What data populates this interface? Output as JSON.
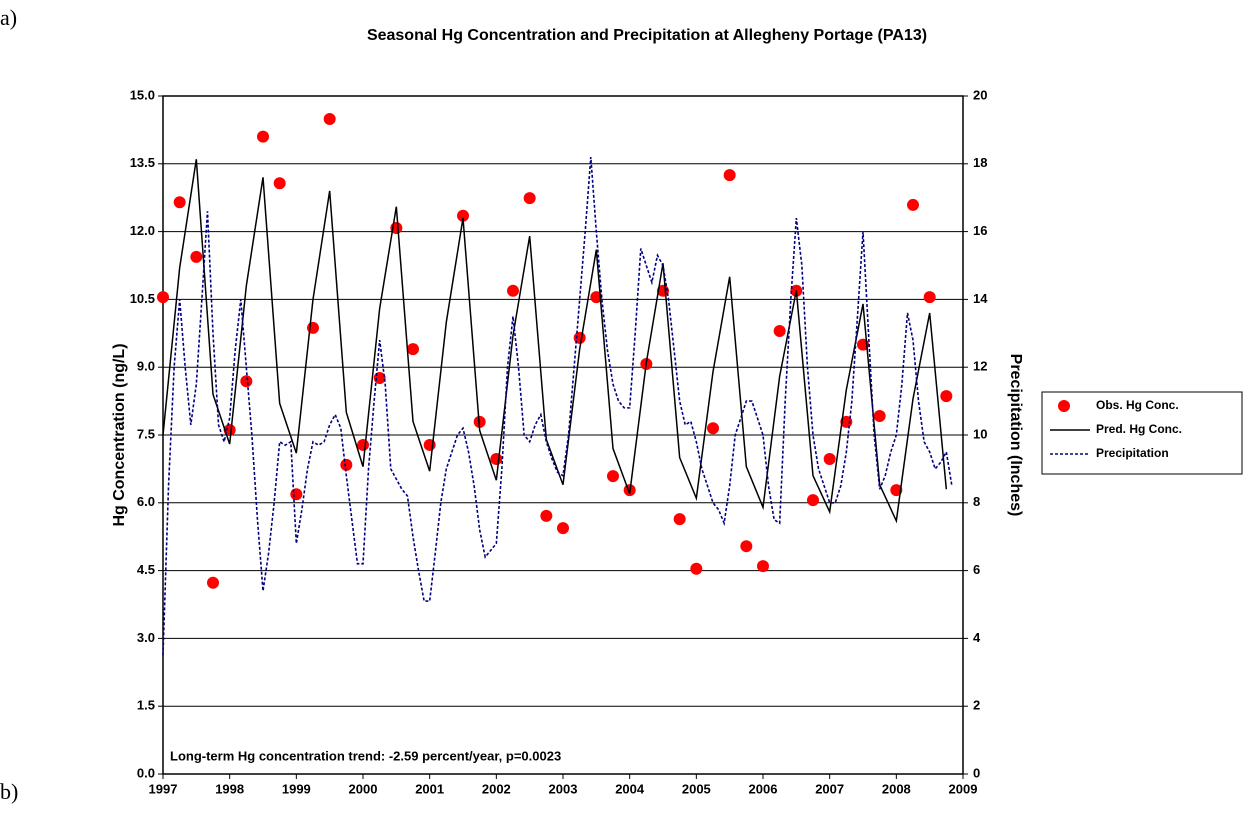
{
  "chart_data": {
    "type": "scatter-line",
    "title": "Seasonal Hg Concentration and Precipitation at Allegheny Portage (PA13)",
    "panel_labels": [
      "a)",
      "b)"
    ],
    "ylabel": "Hg Concentration (ng/L)",
    "y2label": "Precipitation (Inches)",
    "annotation": "Long-term Hg concentration trend:  -2.59 percent/year,  p=0.0023",
    "xlim": [
      1997,
      2009
    ],
    "xticks": [
      1997,
      1998,
      1999,
      2000,
      2001,
      2002,
      2003,
      2004,
      2005,
      2006,
      2007,
      2008,
      2009
    ],
    "ylim": [
      0,
      15
    ],
    "yticks": [
      {
        "value": 0,
        "label": "0.0"
      },
      1.5,
      {
        "value": 3,
        "label": "3.0"
      },
      4.5,
      {
        "value": 6,
        "label": "6.0"
      },
      7.5,
      {
        "value": 9,
        "label": "9.0"
      },
      10.5,
      {
        "value": 12,
        "label": "12.0"
      },
      13.5,
      {
        "value": 15,
        "label": "15.0"
      }
    ],
    "y2lim": [
      0,
      20
    ],
    "y2ticks": [
      0,
      2,
      4,
      6,
      8,
      10,
      12,
      14,
      16,
      18,
      20
    ],
    "grid": true,
    "legend": "right",
    "series": [
      {
        "name": "Obs. Hg Conc.",
        "color": "#ff0000",
        "kind": "points",
        "x": [
          1997,
          1997.25,
          1997.5,
          1997.75,
          1998,
          1998.25,
          1998.5,
          1998.75,
          1999,
          1999.25,
          1999.5,
          1999.75,
          2000,
          2000.25,
          2000.5,
          2000.75,
          2001,
          2001.5,
          2001.75,
          2002,
          2002.25,
          2002.5,
          2002.75,
          2003,
          2003.25,
          2003.5,
          2003.75,
          2004,
          2004.25,
          2004.5,
          2004.75,
          2005,
          2005.25,
          2005.5,
          2005.75,
          2006,
          2006.25,
          2006.5,
          2006.75,
          2007,
          2007.25,
          2007.5,
          2007.75,
          2008,
          2008.25,
          2008.5,
          2008.75
        ],
        "values": [
          10.55,
          12.65,
          11.44,
          4.23,
          7.61,
          8.69,
          14.1,
          13.07,
          6.19,
          9.87,
          14.49,
          6.84,
          7.28,
          8.76,
          12.08,
          9.4,
          7.28,
          12.35,
          7.79,
          6.97,
          10.69,
          12.74,
          5.71,
          5.44,
          9.65,
          10.55,
          6.59,
          6.28,
          9.07,
          10.69,
          5.64,
          4.54,
          7.65,
          13.25,
          5.04,
          4.6,
          9.8,
          10.69,
          6.06,
          6.97,
          7.79,
          9.5,
          7.92,
          6.28,
          12.59,
          10.55,
          8.36
        ]
      },
      {
        "name": "Pred. Hg Conc.",
        "color": "#000000",
        "kind": "line",
        "x": [
          1997,
          1997.25,
          1997.5,
          1997.75,
          1998,
          1998.25,
          1998.5,
          1998.75,
          1999,
          1999.25,
          1999.5,
          1999.75,
          2000,
          2000.25,
          2000.5,
          2000.75,
          2001,
          2001.25,
          2001.5,
          2001.75,
          2002,
          2002.25,
          2002.5,
          2002.75,
          2003,
          2003.25,
          2003.5,
          2003.75,
          2004,
          2004.25,
          2004.5,
          2004.75,
          2005,
          2005.25,
          2005.5,
          2005.75,
          2006,
          2006.25,
          2006.5,
          2006.75,
          2007,
          2007.25,
          2007.5,
          2007.75,
          2008,
          2008.25,
          2008.5,
          2008.75
        ],
        "values": [
          7.5,
          11.2,
          13.6,
          8.4,
          7.3,
          10.8,
          13.2,
          8.2,
          7.1,
          10.5,
          12.9,
          8.0,
          6.8,
          10.3,
          12.55,
          7.8,
          6.7,
          10.0,
          12.3,
          7.6,
          6.5,
          9.7,
          11.9,
          7.4,
          6.4,
          9.4,
          11.6,
          7.2,
          6.2,
          9.1,
          11.3,
          7.0,
          6.1,
          8.9,
          11.0,
          6.8,
          5.9,
          8.8,
          10.7,
          6.6,
          5.8,
          8.5,
          10.4,
          6.4,
          5.6,
          8.3,
          10.2,
          6.3
        ]
      },
      {
        "name": "Precipitation",
        "color": "#000080",
        "kind": "dashed",
        "axis": "y2",
        "x": [
          1997,
          1997.083,
          1997.167,
          1997.25,
          1997.333,
          1997.417,
          1997.5,
          1997.583,
          1997.667,
          1997.75,
          1997.833,
          1997.917,
          1998,
          1998.083,
          1998.167,
          1998.25,
          1998.333,
          1998.417,
          1998.5,
          1998.583,
          1998.667,
          1998.75,
          1998.833,
          1998.917,
          1999,
          1999.083,
          1999.167,
          1999.25,
          1999.333,
          1999.417,
          1999.5,
          1999.583,
          1999.667,
          1999.75,
          1999.833,
          1999.917,
          2000,
          2000.083,
          2000.167,
          2000.25,
          2000.333,
          2000.417,
          2000.5,
          2000.583,
          2000.667,
          2000.75,
          2000.833,
          2000.917,
          2001,
          2001.083,
          2001.167,
          2001.25,
          2001.333,
          2001.417,
          2001.5,
          2001.583,
          2001.667,
          2001.75,
          2001.833,
          2001.917,
          2002,
          2002.083,
          2002.167,
          2002.25,
          2002.333,
          2002.417,
          2002.5,
          2002.583,
          2002.667,
          2002.75,
          2002.833,
          2002.917,
          2003,
          2003.083,
          2003.167,
          2003.25,
          2003.333,
          2003.417,
          2003.5,
          2003.583,
          2003.667,
          2003.75,
          2003.833,
          2003.917,
          2004,
          2004.083,
          2004.167,
          2004.25,
          2004.333,
          2004.417,
          2004.5,
          2004.583,
          2004.667,
          2004.75,
          2004.833,
          2004.917,
          2005,
          2005.083,
          2005.167,
          2005.25,
          2005.333,
          2005.417,
          2005.5,
          2005.583,
          2005.667,
          2005.75,
          2005.833,
          2005.917,
          2006,
          2006.083,
          2006.167,
          2006.25,
          2006.333,
          2006.417,
          2006.5,
          2006.583,
          2006.667,
          2006.75,
          2006.833,
          2006.917,
          2007,
          2007.083,
          2007.167,
          2007.25,
          2007.333,
          2007.417,
          2007.5,
          2007.583,
          2007.667,
          2007.75,
          2007.833,
          2007.917,
          2008,
          2008.083,
          2008.167,
          2008.25,
          2008.333,
          2008.417,
          2008.5,
          2008.583,
          2008.667,
          2008.75,
          2008.833
        ],
        "values": [
          3.5,
          8.5,
          12,
          14,
          12,
          10.3,
          11.5,
          14,
          16.6,
          13,
          10.3,
          9.8,
          10.5,
          12.5,
          14,
          12,
          10,
          7.5,
          5.4,
          6.5,
          8,
          9.8,
          9.7,
          9.8,
          6.8,
          7.8,
          9,
          9.8,
          9.7,
          9.8,
          10.3,
          10.6,
          10.2,
          8.8,
          7.5,
          6.2,
          6.2,
          9,
          11,
          12.8,
          11.5,
          9,
          8.7,
          8.4,
          8.2,
          7,
          6,
          5.1,
          5.1,
          6.5,
          8,
          9,
          9.5,
          10,
          10.2,
          9.5,
          8.5,
          7.2,
          6.4,
          6.6,
          6.8,
          9,
          12,
          13.5,
          12,
          10,
          9.8,
          10.3,
          10.6,
          9.8,
          9.3,
          8.9,
          8.8,
          10,
          12,
          14,
          16,
          18.2,
          16,
          14,
          12.5,
          11.5,
          11,
          10.8,
          10.8,
          13,
          15.5,
          15,
          14.5,
          15.3,
          15,
          14,
          12.5,
          11,
          10.3,
          10.4,
          9.8,
          9,
          8.5,
          8,
          7.8,
          7.4,
          8.5,
          10,
          10.5,
          11,
          11,
          10.5,
          10,
          8.5,
          7.5,
          7.4,
          11,
          14,
          16.4,
          15,
          12,
          10,
          9,
          8.5,
          8,
          8,
          8.5,
          9.5,
          11,
          13.5,
          16,
          13,
          10,
          8.4,
          8.8,
          9.5,
          10,
          11.5,
          13.6,
          12.8,
          11,
          9.8,
          9.5,
          9,
          9.2,
          9.5,
          8.5
        ]
      }
    ]
  }
}
